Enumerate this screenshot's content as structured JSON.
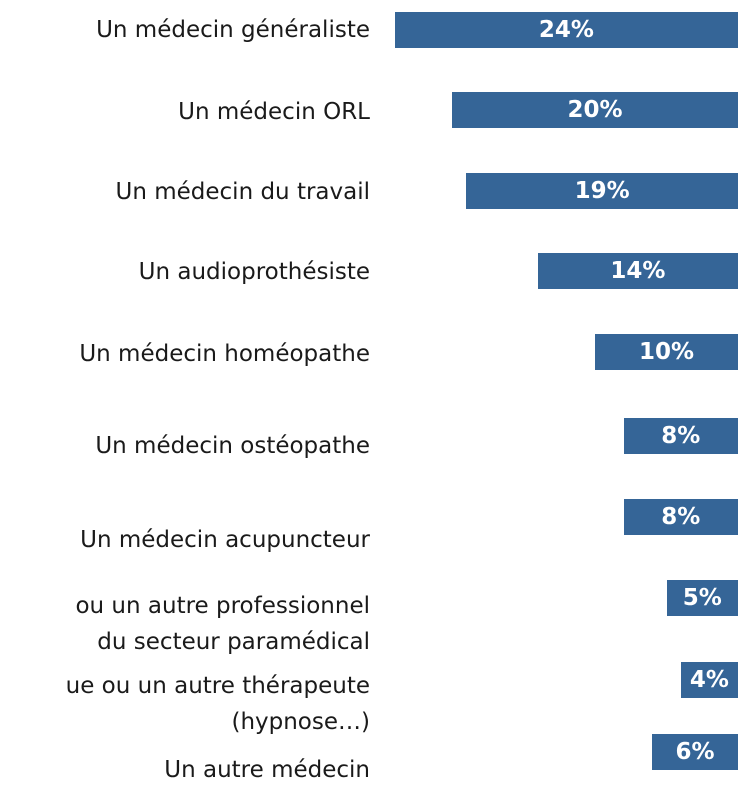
{
  "chart_data": {
    "type": "bar",
    "orientation": "horizontal",
    "color": "#356597",
    "categories": [
      "Un médecin généraliste",
      "Un médecin ORL",
      "Un médecin du travail",
      "Un audioprothésiste",
      "Un médecin homéopathe",
      "Un médecin ostéopathe",
      "Un médecin acupuncteur",
      "ou un autre professionnel\ndu secteur paramédical",
      "ue ou un autre thérapeute\n(hypnose…)",
      "Un autre médecin"
    ],
    "values": [
      24,
      20,
      19,
      14,
      10,
      8,
      8,
      5,
      4,
      6
    ],
    "value_labels": [
      "24%",
      "20%",
      "19%",
      "14%",
      "10%",
      "8%",
      "8%",
      "5%",
      "4%",
      "6%"
    ]
  }
}
